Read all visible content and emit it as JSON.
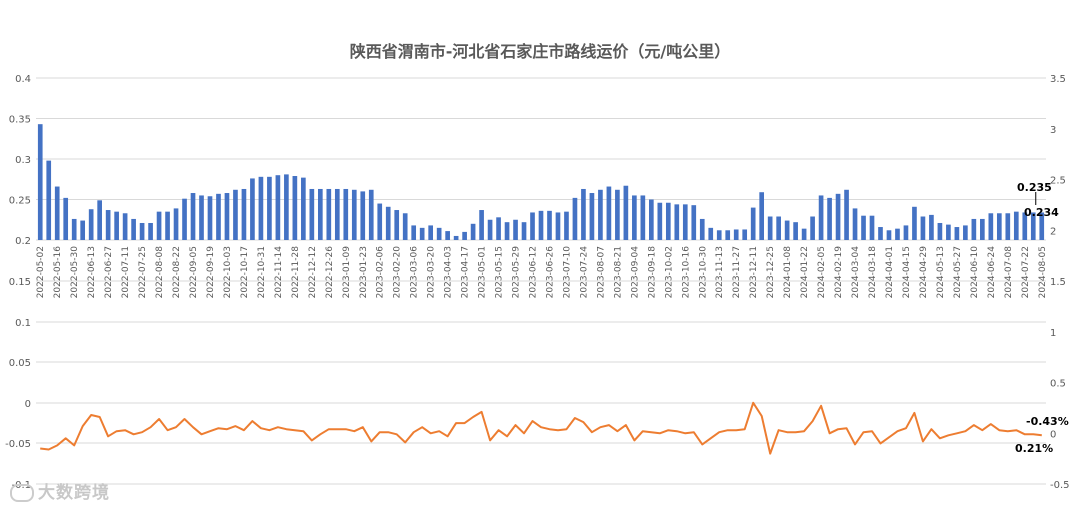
{
  "chart_data": {
    "title": "陕西省渭南市-河北省石家庄市路线运价（元/吨公里）",
    "type": "bar+line",
    "x": [
      "2022-05-02",
      "2022-05-09",
      "2022-05-16",
      "2022-05-23",
      "2022-05-30",
      "2022-06-06",
      "2022-06-13",
      "2022-06-20",
      "2022-06-27",
      "2022-07-04",
      "2022-07-11",
      "2022-07-18",
      "2022-07-25",
      "2022-08-01",
      "2022-08-08",
      "2022-08-15",
      "2022-08-22",
      "2022-08-29",
      "2022-09-05",
      "2022-09-12",
      "2022-09-19",
      "2022-09-26",
      "2022-10-03",
      "2022-10-10",
      "2022-10-17",
      "2022-10-24",
      "2022-10-31",
      "2022-11-07",
      "2022-11-14",
      "2022-11-21",
      "2022-11-28",
      "2022-12-05",
      "2022-12-12",
      "2022-12-19",
      "2022-12-26",
      "2023-01-02",
      "2023-01-09",
      "2023-01-16",
      "2023-01-23",
      "2023-01-30",
      "2023-02-06",
      "2023-02-13",
      "2023-02-20",
      "2023-02-27",
      "2023-03-06",
      "2023-03-13",
      "2023-03-20",
      "2023-03-27",
      "2023-04-03",
      "2023-04-10",
      "2023-04-17",
      "2023-04-24",
      "2023-05-01",
      "2023-05-08",
      "2023-05-15",
      "2023-05-22",
      "2023-05-29",
      "2023-06-05",
      "2023-06-12",
      "2023-06-19",
      "2023-06-26",
      "2023-07-03",
      "2023-07-10",
      "2023-07-17",
      "2023-07-24",
      "2023-07-31",
      "2023-08-07",
      "2023-08-14",
      "2023-08-21",
      "2023-08-28",
      "2023-09-04",
      "2023-09-11",
      "2023-09-18",
      "2023-09-25",
      "2023-10-02",
      "2023-10-09",
      "2023-10-16",
      "2023-10-23",
      "2023-10-30",
      "2023-11-06",
      "2023-11-13",
      "2023-11-20",
      "2023-11-27",
      "2023-12-04",
      "2023-12-11",
      "2023-12-18",
      "2023-12-25",
      "2024-01-01",
      "2024-01-08",
      "2024-01-15",
      "2024-01-22",
      "2024-01-29",
      "2024-02-05",
      "2024-02-12",
      "2024-02-19",
      "2024-02-26",
      "2024-03-04",
      "2024-03-11",
      "2024-03-18",
      "2024-03-25",
      "2024-04-01",
      "2024-04-08",
      "2024-04-15",
      "2024-04-22",
      "2024-04-29",
      "2024-05-06",
      "2024-05-13",
      "2024-05-20",
      "2024-05-27",
      "2024-06-03",
      "2024-06-10",
      "2024-06-17",
      "2024-06-24",
      "2024-07-01",
      "2024-07-08",
      "2024-07-15",
      "2024-07-22",
      "2024-07-29",
      "2024-08-05"
    ],
    "tick_labels": [
      "2022-05-02",
      "2022-05-16",
      "2022-05-30",
      "2022-06-13",
      "2022-06-27",
      "2022-07-11",
      "2022-07-25",
      "2022-08-08",
      "2022-08-22",
      "2022-09-05",
      "2022-09-19",
      "2022-10-03",
      "2022-10-17",
      "2022-10-31",
      "2022-11-14",
      "2022-11-28",
      "2022-12-12",
      "2022-12-26",
      "2023-01-09",
      "2023-01-23",
      "2023-02-06",
      "2023-02-20",
      "2023-03-06",
      "2023-03-20",
      "2023-04-03",
      "2023-04-17",
      "2023-05-01",
      "2023-05-15",
      "2023-05-29",
      "2023-06-12",
      "2023-06-26",
      "2023-07-10",
      "2023-07-24",
      "2023-08-07",
      "2023-08-21",
      "2023-09-04",
      "2023-09-18",
      "2023-10-02",
      "2023-10-16",
      "2023-10-30",
      "2023-11-13",
      "2023-11-27",
      "2023-12-11",
      "2023-12-25",
      "2024-01-08",
      "2024-01-22",
      "2024-02-05",
      "2024-02-19",
      "2024-03-04",
      "2024-03-18",
      "2024-04-01",
      "2024-04-15",
      "2024-04-29",
      "2024-05-13",
      "2024-05-27",
      "2024-06-10",
      "2024-06-24",
      "2024-07-08",
      "2024-07-22",
      "2024-08-05"
    ],
    "series": [
      {
        "type": "bar",
        "axis": "left",
        "color": "#4472C4",
        "values": [
          0.343,
          0.298,
          0.266,
          0.252,
          0.226,
          0.224,
          0.238,
          0.249,
          0.237,
          0.235,
          0.233,
          0.226,
          0.221,
          0.221,
          0.235,
          0.235,
          0.239,
          0.251,
          0.258,
          0.255,
          0.254,
          0.257,
          0.258,
          0.262,
          0.263,
          0.276,
          0.278,
          0.278,
          0.28,
          0.281,
          0.279,
          0.277,
          0.263,
          0.263,
          0.263,
          0.263,
          0.263,
          0.262,
          0.26,
          0.262,
          0.245,
          0.241,
          0.237,
          0.233,
          0.218,
          0.215,
          0.218,
          0.215,
          0.211,
          0.205,
          0.21,
          0.22,
          0.237,
          0.225,
          0.228,
          0.222,
          0.225,
          0.222,
          0.234,
          0.236,
          0.236,
          0.234,
          0.235,
          0.252,
          0.263,
          0.258,
          0.262,
          0.266,
          0.262,
          0.267,
          0.255,
          0.255,
          0.25,
          0.246,
          0.246,
          0.244,
          0.244,
          0.243,
          0.226,
          0.215,
          0.212,
          0.212,
          0.213,
          0.213,
          0.24,
          0.259,
          0.229,
          0.229,
          0.224,
          0.222,
          0.214,
          0.229,
          0.255,
          0.252,
          0.257,
          0.262,
          0.239,
          0.23,
          0.23,
          0.216,
          0.212,
          0.214,
          0.218,
          0.241,
          0.229,
          0.231,
          0.221,
          0.219,
          0.216,
          0.218,
          0.226,
          0.226,
          0.233,
          0.233,
          0.233,
          0.235,
          0.234,
          0.234,
          0.234
        ]
      },
      {
        "type": "line",
        "axis": "right",
        "color": "#ED7D31",
        "values": [
          -0.15,
          -0.16,
          -0.12,
          -0.05,
          -0.12,
          0.07,
          0.18,
          0.16,
          -0.03,
          0.02,
          0.03,
          -0.01,
          0.01,
          0.06,
          0.14,
          0.03,
          0.06,
          0.14,
          0.06,
          -0.01,
          0.02,
          0.05,
          0.04,
          0.07,
          0.03,
          0.12,
          0.05,
          0.03,
          0.06,
          0.04,
          0.03,
          0.02,
          -0.07,
          -0.01,
          0.04,
          0.04,
          0.04,
          0.02,
          0.06,
          -0.08,
          0.01,
          0.01,
          -0.01,
          -0.09,
          0.01,
          0.06,
          0.0,
          0.02,
          -0.03,
          0.1,
          0.1,
          0.16,
          0.21,
          -0.07,
          0.03,
          -0.03,
          0.08,
          0.0,
          0.12,
          0.06,
          0.04,
          0.03,
          0.04,
          0.15,
          0.11,
          0.01,
          0.06,
          0.08,
          0.02,
          0.08,
          -0.07,
          0.02,
          0.01,
          0.0,
          0.03,
          0.02,
          0.0,
          0.01,
          -0.11,
          -0.05,
          0.01,
          0.03,
          0.03,
          0.04,
          0.3,
          0.17,
          -0.2,
          0.03,
          0.01,
          0.01,
          0.02,
          0.12,
          0.27,
          0.0,
          0.04,
          0.05,
          -0.11,
          0.01,
          0.02,
          -0.1,
          -0.04,
          0.02,
          0.05,
          0.2,
          -0.08,
          0.04,
          -0.05,
          -0.02,
          0.0,
          0.02,
          0.08,
          0.03,
          0.09,
          0.03,
          0.02,
          0.03,
          -0.01,
          -0.01,
          -0.02
        ]
      }
    ],
    "left_axis": {
      "upper": {
        "ticks": [
          "0.2",
          "0.25",
          "0.3",
          "0.35",
          "0.4"
        ],
        "range": [
          0.2,
          0.4
        ]
      },
      "lower": {
        "ticks": [
          "-0.1",
          "-0.05",
          "0",
          "0.05",
          "0.1",
          "0.15"
        ]
      }
    },
    "right_axis": {
      "ticks": [
        "-0.5",
        "0",
        "0.5",
        "1",
        "1.5",
        "2",
        "2.5",
        "3",
        "3.5"
      ],
      "range": [
        -0.5,
        3.5
      ]
    },
    "grid": true,
    "annotations": {
      "bar_last_1": "0.235",
      "bar_last_2": "0.234",
      "pct_1": "-0.43%",
      "pct_2": "0.21%"
    }
  },
  "watermark": "大数跨境"
}
